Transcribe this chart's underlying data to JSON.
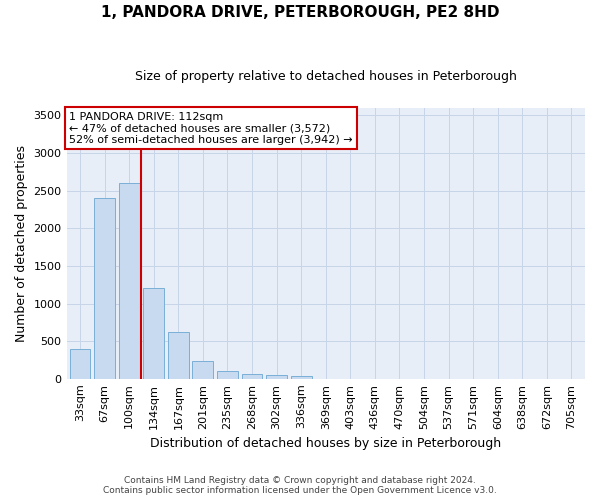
{
  "title": "1, PANDORA DRIVE, PETERBOROUGH, PE2 8HD",
  "subtitle": "Size of property relative to detached houses in Peterborough",
  "xlabel": "Distribution of detached houses by size in Peterborough",
  "ylabel": "Number of detached properties",
  "footer_line1": "Contains HM Land Registry data © Crown copyright and database right 2024.",
  "footer_line2": "Contains public sector information licensed under the Open Government Licence v3.0.",
  "bar_color": "#c8daf0",
  "bar_edge_color": "#7aafd6",
  "grid_color": "#c8d4e8",
  "background_color": "#e8eef8",
  "annotation_box_color": "#ffffff",
  "annotation_border_color": "#cc0000",
  "vline_color": "#cc0000",
  "categories": [
    "33sqm",
    "67sqm",
    "100sqm",
    "134sqm",
    "167sqm",
    "201sqm",
    "235sqm",
    "268sqm",
    "302sqm",
    "336sqm",
    "369sqm",
    "403sqm",
    "436sqm",
    "470sqm",
    "504sqm",
    "537sqm",
    "571sqm",
    "604sqm",
    "638sqm",
    "672sqm",
    "705sqm"
  ],
  "values": [
    400,
    2400,
    2600,
    1200,
    620,
    230,
    100,
    65,
    55,
    40,
    0,
    0,
    0,
    0,
    0,
    0,
    0,
    0,
    0,
    0,
    0
  ],
  "ylim": [
    0,
    3600
  ],
  "yticks": [
    0,
    500,
    1000,
    1500,
    2000,
    2500,
    3000,
    3500
  ],
  "vline_x": 2.5,
  "annotation_text_line1": "1 PANDORA DRIVE: 112sqm",
  "annotation_text_line2": "← 47% of detached houses are smaller (3,572)",
  "annotation_text_line3": "52% of semi-detached houses are larger (3,942) →",
  "annotation_fontsize": 8,
  "title_fontsize": 11,
  "subtitle_fontsize": 9,
  "ylabel_fontsize": 9,
  "xlabel_fontsize": 9,
  "tick_fontsize": 8,
  "footer_fontsize": 6.5
}
